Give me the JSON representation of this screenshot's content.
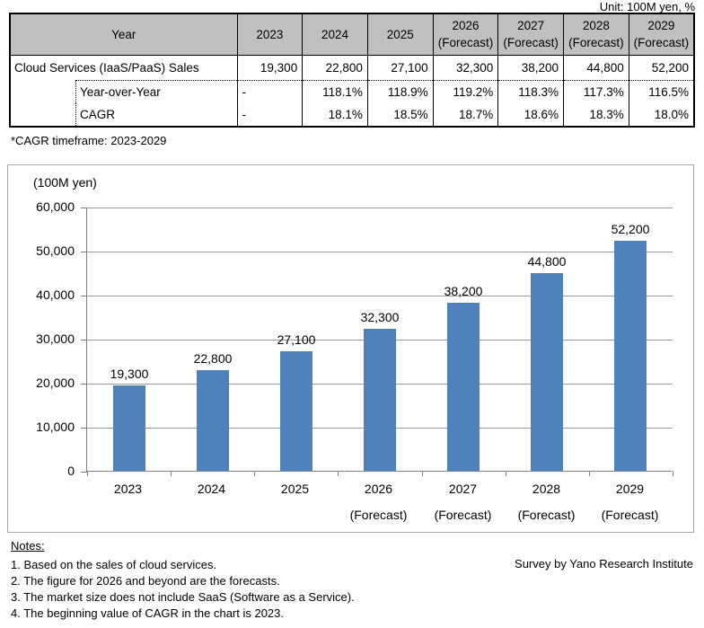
{
  "unit_label": "Unit: 100M yen, %",
  "table": {
    "header_row": {
      "year_label": "Year",
      "columns": [
        {
          "year": "2023",
          "sub": ""
        },
        {
          "year": "2024",
          "sub": ""
        },
        {
          "year": "2025",
          "sub": ""
        },
        {
          "year": "2026",
          "sub": "(Forecast)"
        },
        {
          "year": "2027",
          "sub": "(Forecast)"
        },
        {
          "year": "2028",
          "sub": "(Forecast)"
        },
        {
          "year": "2029",
          "sub": "(Forecast)"
        }
      ]
    },
    "rows": [
      {
        "label": "Cloud Services (IaaS/PaaS) Sales",
        "indent": false,
        "values": [
          "19,300",
          "22,800",
          "27,100",
          "32,300",
          "38,200",
          "44,800",
          "52,200"
        ]
      },
      {
        "label": "Year-over-Year",
        "indent": true,
        "values": [
          "-",
          "118.1%",
          "118.9%",
          "119.2%",
          "118.3%",
          "117.3%",
          "116.5%"
        ]
      },
      {
        "label": "CAGR",
        "indent": true,
        "values": [
          "-",
          "18.1%",
          "18.5%",
          "18.7%",
          "18.6%",
          "18.3%",
          "18.0%"
        ]
      }
    ]
  },
  "cagr_note": "*CAGR timeframe: 2023-2029",
  "chart_data": {
    "type": "bar",
    "title": "",
    "unit_label": "(100M yen)",
    "ylabel": "(100M yen)",
    "xlabel": "",
    "categories": [
      "2023",
      "2024",
      "2025",
      "2026",
      "2027",
      "2028",
      "2029"
    ],
    "category_sublabels": [
      "",
      "",
      "",
      "(Forecast)",
      "(Forecast)",
      "(Forecast)",
      "(Forecast)"
    ],
    "values": [
      19300,
      22800,
      27100,
      32300,
      38200,
      44800,
      52200
    ],
    "value_labels": [
      "19,300",
      "22,800",
      "27,100",
      "32,300",
      "38,200",
      "44,800",
      "52,200"
    ],
    "ylim": [
      0,
      60000
    ],
    "ytick_step": 10000,
    "ytick_labels": [
      "0",
      "10,000",
      "20,000",
      "30,000",
      "40,000",
      "50,000",
      "60,000"
    ],
    "grid": true,
    "legend": "none",
    "bar_color": "#4F81BD",
    "gridline_color": "#999999",
    "axis_color": "#808080"
  },
  "notes": {
    "heading": "Notes:",
    "items": [
      "1. Based on the sales of cloud services.",
      "2. The figure for 2026 and beyond are the forecasts.",
      "3. The market size does not include SaaS (Software as a Service).",
      "4. The beginning value of CAGR in the chart is 2023."
    ],
    "credit": "Survey by Yano Research Institute"
  }
}
